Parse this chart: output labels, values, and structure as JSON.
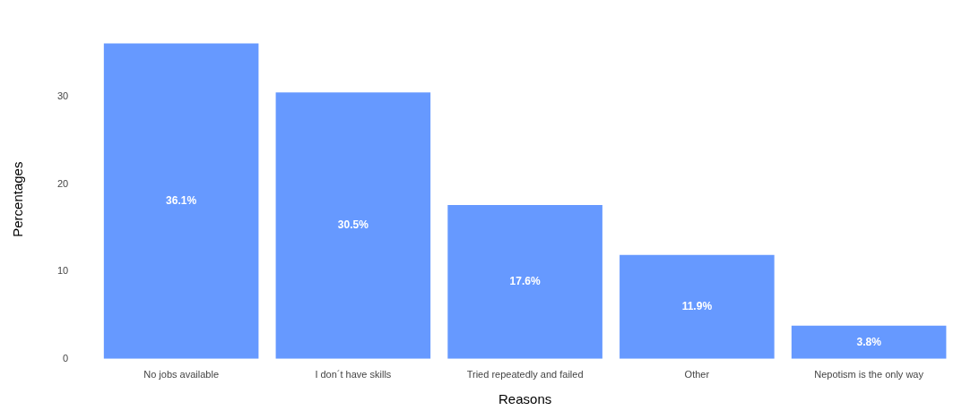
{
  "chart_data": {
    "type": "bar",
    "xlabel": "Reasons",
    "ylabel": "Percentages",
    "categories": [
      "No jobs available",
      "I don´t have skills",
      "Tried repeatedly and failed",
      "Other",
      "Nepotism is the only way"
    ],
    "values": [
      36.1,
      30.5,
      17.6,
      11.9,
      3.8
    ],
    "value_labels": [
      "36.1%",
      "30.5%",
      "17.6%",
      "11.9%",
      "3.8%"
    ],
    "color": "#6699ff",
    "ylim": [
      0,
      36.5
    ],
    "yticks": [
      0,
      10,
      20,
      30
    ],
    "grid": false,
    "legend": false
  }
}
